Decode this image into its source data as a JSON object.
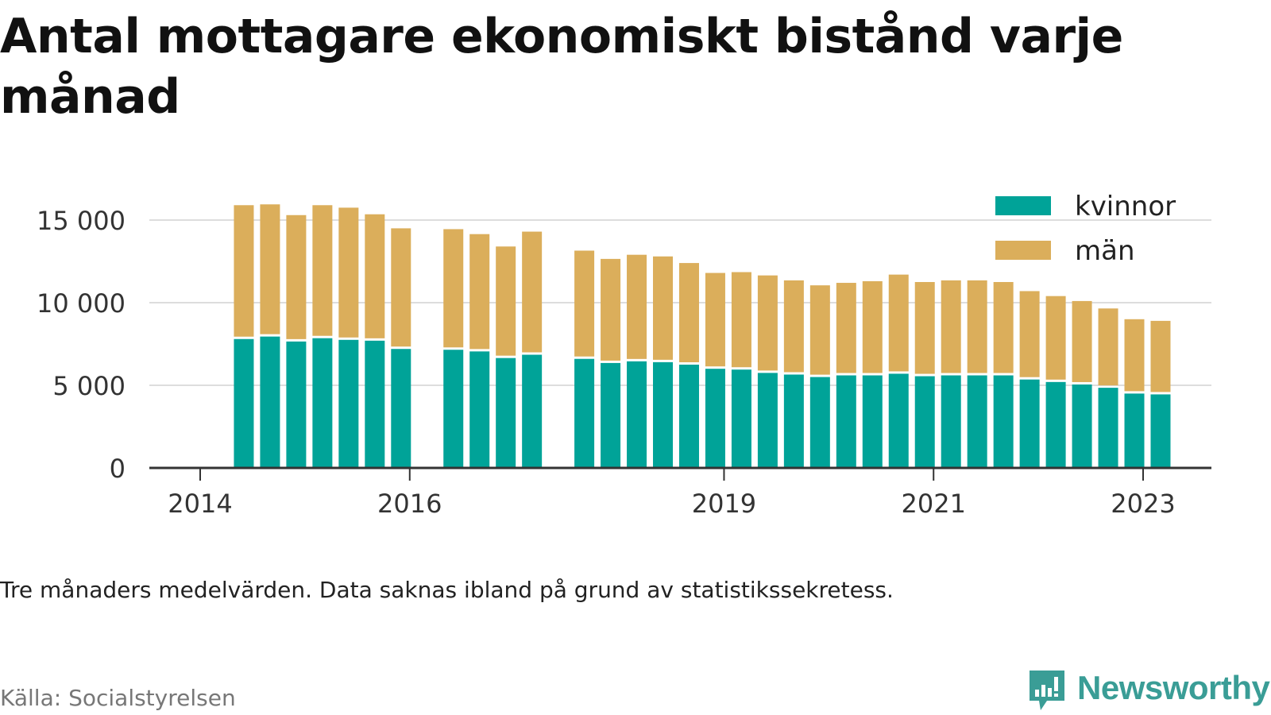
{
  "title": "Antal mottagare ekonomiskt bistånd varje månad",
  "note": "Tre månaders medelvärden. Data saknas ibland på grund av statistikssekretess.",
  "source": "Källa: Socialstyrelsen",
  "brand": "Newsworthy",
  "colors": {
    "kvinnor": "#00a398",
    "man": "#dbae5b",
    "grid": "#dddddd",
    "axis": "#333333",
    "brand": "#3a9d96"
  },
  "chart_data": {
    "type": "bar",
    "stacked": true,
    "x": [
      "2014-06",
      "2014-09",
      "2014-12",
      "2015-03",
      "2015-06",
      "2015-09",
      "2015-12",
      "2016-06",
      "2016-09",
      "2016-12",
      "2017-03",
      "2017-09",
      "2017-12",
      "2018-03",
      "2018-06",
      "2018-09",
      "2018-12",
      "2019-03",
      "2019-06",
      "2019-09",
      "2019-12",
      "2020-03",
      "2020-06",
      "2020-09",
      "2020-12",
      "2021-03",
      "2021-06",
      "2021-09",
      "2021-12",
      "2022-03",
      "2022-06",
      "2022-09",
      "2022-12",
      "2023-03"
    ],
    "series": [
      {
        "name": "kvinnor",
        "values": [
          7800,
          7950,
          7650,
          7850,
          7750,
          7700,
          7200,
          7150,
          7050,
          6650,
          6850,
          6600,
          6350,
          6450,
          6400,
          6250,
          6000,
          5950,
          5750,
          5650,
          5500,
          5600,
          5600,
          5700,
          5550,
          5600,
          5600,
          5600,
          5350,
          5200,
          5050,
          4850,
          4500,
          4450
        ]
      },
      {
        "name": "män",
        "values": [
          8100,
          8000,
          7650,
          8050,
          8000,
          7650,
          7300,
          7300,
          7100,
          6750,
          7450,
          6550,
          6300,
          6450,
          6400,
          6150,
          5800,
          5900,
          5900,
          5700,
          5550,
          5600,
          5700,
          6000,
          5700,
          5750,
          5750,
          5650,
          5350,
          5200,
          5050,
          4800,
          4500,
          4450
        ]
      }
    ],
    "ylim": [
      0,
      17000
    ],
    "yticks": [
      0,
      5000,
      10000,
      15000
    ],
    "ytick_labels": [
      "0",
      "5 000",
      "10 000",
      "15 000"
    ],
    "xticks": [
      "2014",
      "2016",
      "2019",
      "2021",
      "2023"
    ],
    "xlabel": "",
    "ylabel": "",
    "grid": true,
    "legend_position": "top-right"
  }
}
